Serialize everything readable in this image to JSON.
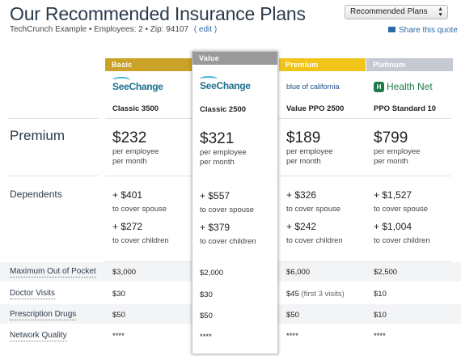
{
  "header": {
    "title": "Our Recommended Insurance Plans",
    "company": "TechCrunch Example",
    "employees": "Employees: 2",
    "zip": "Zip: 94107",
    "edit_label": "( edit )",
    "share_label": "Share this quote",
    "sort_select_value": "Recommended Plans"
  },
  "row_labels": {
    "premium": "Premium",
    "dependents": "Dependents",
    "max_oop": "Maximum Out of Pocket",
    "doctor": "Doctor Visits",
    "rx": "Prescription Drugs",
    "network": "Network Quality"
  },
  "plans": [
    {
      "tier": "Basic",
      "tier_color": "#c9a227",
      "logo_text": "SeeChange",
      "logo_icon": "seechange-logo",
      "name": "Classic 3500",
      "premium": "$232",
      "per1": "per employee",
      "per2": "per month",
      "spouse_amt": "+ $401",
      "spouse_note": "to cover spouse",
      "children_amt": "+ $272",
      "children_note": "to cover children",
      "max_oop": "$3,000",
      "doctor": "$30",
      "doctor_note": "",
      "rx": "$50",
      "network": "****"
    },
    {
      "tier": "Value",
      "tier_color": "#9a9a9a",
      "logo_text": "SeeChange",
      "logo_icon": "seechange-logo",
      "name": "Classic 2500",
      "premium": "$321",
      "per1": "per employee",
      "per2": "per month",
      "spouse_amt": "+ $557",
      "spouse_note": "to cover spouse",
      "children_amt": "+ $379",
      "children_note": "to cover children",
      "max_oop": "$2,000",
      "doctor": "$30",
      "doctor_note": "",
      "rx": "$50",
      "network": "****"
    },
    {
      "tier": "Premium",
      "tier_color": "#f0c419",
      "logo_text": "blue of california",
      "logo_icon": "blue-shield-logo",
      "name": "Value PPO 2500",
      "premium": "$189",
      "per1": "per employee",
      "per2": "per month",
      "spouse_amt": "+ $326",
      "spouse_note": "to cover spouse",
      "children_amt": "+ $242",
      "children_note": "to cover children",
      "max_oop": "$6,000",
      "doctor": "$45",
      "doctor_note": "(first 3 visits)",
      "rx": "$50",
      "network": "****"
    },
    {
      "tier": "Platinum",
      "tier_color": "#c5c9d1",
      "logo_text": "Health Net",
      "logo_icon": "healthnet-logo",
      "name": "PPO Standard 10",
      "premium": "$799",
      "per1": "per employee",
      "per2": "per month",
      "spouse_amt": "+ $1,527",
      "spouse_note": "to cover spouse",
      "children_amt": "+ $1,004",
      "children_note": "to cover children",
      "max_oop": "$2,500",
      "doctor": "$10",
      "doctor_note": "",
      "rx": "$10",
      "network": "****"
    }
  ]
}
